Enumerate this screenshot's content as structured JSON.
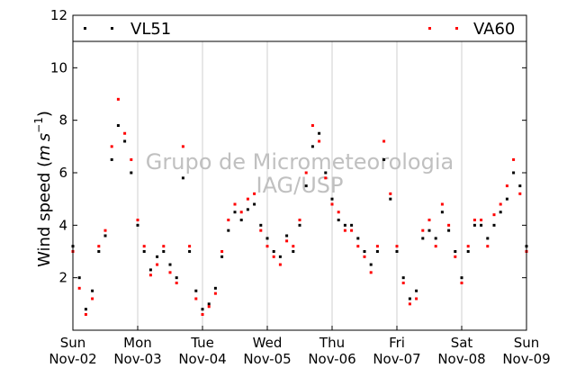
{
  "chart_data": {
    "type": "scatter",
    "title": "",
    "ylabel": "Wind speed (m s⁻¹)",
    "ylabel_main": "Wind speed (",
    "ylabel_unit_m": "m",
    "ylabel_unit_s": "s",
    "ylabel_exp": "−1",
    "ylabel_close": ")",
    "ylim": [
      0,
      12
    ],
    "yticks": [
      2,
      4,
      6,
      8,
      10,
      12
    ],
    "xlim": [
      0,
      7
    ],
    "xticks": [
      {
        "x": 0,
        "day": "Sun",
        "date": "Nov-02"
      },
      {
        "x": 1,
        "day": "Mon",
        "date": "Nov-03"
      },
      {
        "x": 2,
        "day": "Tue",
        "date": "Nov-04"
      },
      {
        "x": 3,
        "day": "Wed",
        "date": "Nov-05"
      },
      {
        "x": 4,
        "day": "Thu",
        "date": "Nov-06"
      },
      {
        "x": 5,
        "day": "Fri",
        "date": "Nov-07"
      },
      {
        "x": 6,
        "day": "Sat",
        "date": "Nov-08"
      },
      {
        "x": 7,
        "day": "Sun",
        "date": "Nov-09"
      }
    ],
    "grid": "vertical",
    "legend": "top",
    "watermark": [
      "Grupo de Micrometeorologia",
      "IAG/USP"
    ],
    "series": [
      {
        "name": "VL51",
        "color": "#000000",
        "x": [
          0.0,
          0.1,
          0.2,
          0.3,
          0.4,
          0.5,
          0.6,
          0.7,
          0.8,
          0.9,
          1.0,
          1.1,
          1.2,
          1.3,
          1.4,
          1.5,
          1.6,
          1.7,
          1.8,
          1.9,
          2.0,
          2.1,
          2.2,
          2.3,
          2.4,
          2.5,
          2.6,
          2.7,
          2.8,
          2.9,
          3.0,
          3.1,
          3.2,
          3.3,
          3.4,
          3.5,
          3.6,
          3.7,
          3.8,
          3.9,
          4.0,
          4.1,
          4.2,
          4.3,
          4.4,
          4.5,
          4.6,
          4.7,
          4.8,
          4.9,
          5.0,
          5.1,
          5.2,
          5.3,
          5.4,
          5.5,
          5.6,
          5.7,
          5.8,
          5.9,
          6.0,
          6.1,
          6.2,
          6.3,
          6.4,
          6.5,
          6.6,
          6.7,
          6.8,
          6.9,
          7.0
        ],
        "values": [
          3.2,
          2.0,
          0.8,
          1.5,
          3.0,
          3.6,
          6.5,
          7.8,
          7.2,
          6.0,
          4.0,
          3.0,
          2.3,
          2.8,
          3.0,
          2.5,
          2.0,
          5.8,
          3.0,
          1.5,
          0.8,
          1.0,
          1.6,
          2.8,
          3.8,
          4.5,
          4.2,
          4.6,
          4.8,
          4.0,
          3.5,
          3.0,
          2.8,
          3.6,
          3.0,
          4.0,
          5.5,
          7.0,
          7.5,
          6.0,
          5.0,
          4.2,
          4.0,
          4.0,
          3.5,
          3.0,
          2.5,
          3.0,
          6.5,
          5.0,
          3.0,
          2.0,
          1.2,
          1.5,
          3.5,
          3.8,
          3.5,
          4.5,
          3.8,
          3.0,
          2.0,
          3.0,
          4.0,
          4.0,
          3.5,
          4.0,
          4.5,
          5.0,
          6.0,
          5.5,
          3.2
        ]
      },
      {
        "name": "VA60",
        "color": "#ff0000",
        "x": [
          0.0,
          0.1,
          0.2,
          0.3,
          0.4,
          0.5,
          0.6,
          0.7,
          0.8,
          0.9,
          1.0,
          1.1,
          1.2,
          1.3,
          1.4,
          1.5,
          1.6,
          1.7,
          1.8,
          1.9,
          2.0,
          2.1,
          2.2,
          2.3,
          2.4,
          2.5,
          2.6,
          2.7,
          2.8,
          2.9,
          3.0,
          3.1,
          3.2,
          3.3,
          3.4,
          3.5,
          3.6,
          3.7,
          3.8,
          3.9,
          4.0,
          4.1,
          4.2,
          4.3,
          4.4,
          4.5,
          4.6,
          4.7,
          4.8,
          4.9,
          5.0,
          5.1,
          5.2,
          5.3,
          5.4,
          5.5,
          5.6,
          5.7,
          5.8,
          5.9,
          6.0,
          6.1,
          6.2,
          6.3,
          6.4,
          6.5,
          6.6,
          6.7,
          6.8,
          6.9,
          7.0
        ],
        "values": [
          3.0,
          1.6,
          0.6,
          1.2,
          3.2,
          3.8,
          7.0,
          8.8,
          7.5,
          6.5,
          4.2,
          3.2,
          2.1,
          2.5,
          3.2,
          2.2,
          1.8,
          7.0,
          3.2,
          1.2,
          0.6,
          0.9,
          1.4,
          3.0,
          4.2,
          4.8,
          4.5,
          5.0,
          5.2,
          3.8,
          3.2,
          2.8,
          2.5,
          3.4,
          3.2,
          4.2,
          6.0,
          7.8,
          7.2,
          5.8,
          4.8,
          4.5,
          3.8,
          3.8,
          3.2,
          2.8,
          2.2,
          3.2,
          7.2,
          5.2,
          3.2,
          1.8,
          1.0,
          1.2,
          3.8,
          4.2,
          3.2,
          4.8,
          4.0,
          2.8,
          1.8,
          3.2,
          4.2,
          4.2,
          3.2,
          4.4,
          4.8,
          5.5,
          6.5,
          5.2,
          3.0
        ]
      }
    ]
  }
}
